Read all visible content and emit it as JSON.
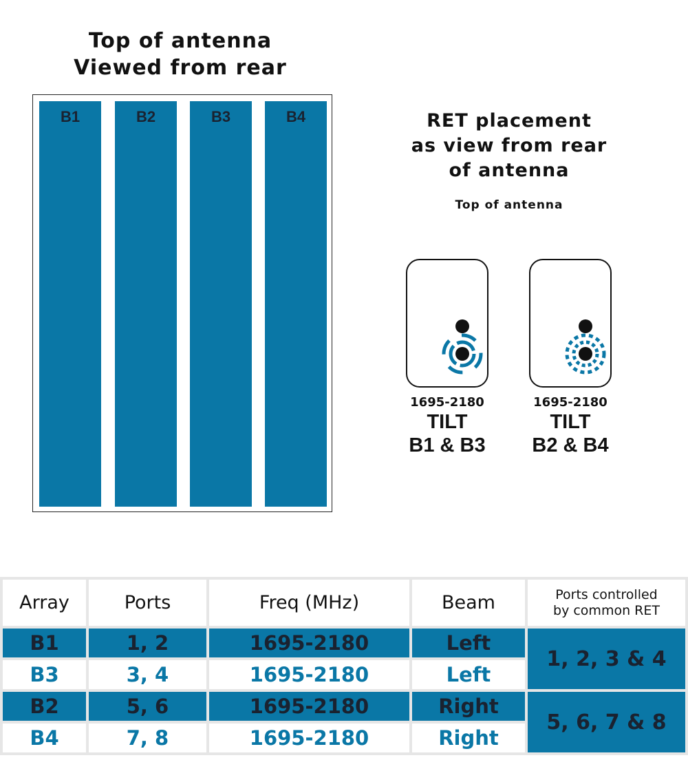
{
  "antenna": {
    "title_line1": "Top of antenna",
    "title_line2": "Viewed from rear",
    "columns": [
      "B1",
      "B2",
      "B3",
      "B4"
    ],
    "column_color": "#0a77a6"
  },
  "ret": {
    "title_line1": "RET placement",
    "title_line2": "as view from rear",
    "title_line3": "of antenna",
    "subtitle": "Top of antenna",
    "units": [
      {
        "freq": "1695-2180",
        "tilt": "TILT",
        "arrays": "B1 & B3",
        "indicator": "solid-ring"
      },
      {
        "freq": "1695-2180",
        "tilt": "TILT",
        "arrays": "B2 & B4",
        "indicator": "dashed-ring"
      }
    ]
  },
  "table": {
    "headers": [
      "Array",
      "Ports",
      "Freq (MHz)",
      "Beam"
    ],
    "header_ret_line1": "Ports controlled",
    "header_ret_line2": "by common RET",
    "rows": [
      {
        "array": "B1",
        "ports": "1, 2",
        "freq": "1695-2180",
        "beam": "Left"
      },
      {
        "array": "B3",
        "ports": "3, 4",
        "freq": "1695-2180",
        "beam": "Left"
      },
      {
        "array": "B2",
        "ports": "5, 6",
        "freq": "1695-2180",
        "beam": "Right"
      },
      {
        "array": "B4",
        "ports": "7, 8",
        "freq": "1695-2180",
        "beam": "Right"
      }
    ],
    "ret_groups": [
      "1, 2, 3 & 4",
      "5, 6, 7 & 8"
    ]
  }
}
